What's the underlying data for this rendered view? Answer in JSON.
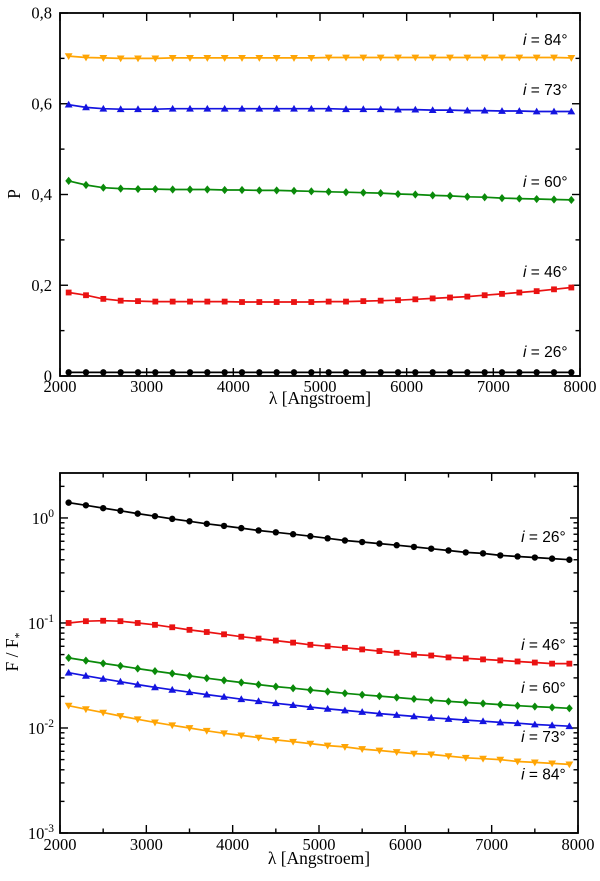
{
  "figure_title": "",
  "chart_data": [
    {
      "id": "polarization-vs-wavelength",
      "type": "line",
      "title": "",
      "xlabel": "λ [Angstroem]",
      "ylabel": "P",
      "yscale": "linear",
      "xlim": [
        2000,
        8000
      ],
      "ylim": [
        0,
        0.8
      ],
      "x_start": 2100,
      "x_step": 200,
      "x_major_ticks": [
        2000,
        3000,
        4000,
        5000,
        6000,
        7000,
        8000
      ],
      "x_tick_labels": [
        "2000",
        "3000",
        "4000",
        "5000",
        "6000",
        "7000",
        "8000"
      ],
      "x_minor_ticks": [
        2500,
        3500,
        4500,
        5500,
        6500,
        7500
      ],
      "y_major_ticks": [
        0,
        0.2,
        0.4,
        0.6,
        0.8
      ],
      "y_tick_labels": [
        "0",
        "0,2",
        "0,4",
        "0,6",
        "0,8"
      ],
      "y_minor_ticks": [
        0.1,
        0.3,
        0.5,
        0.7
      ],
      "grid": false,
      "legend_position": "inline-right-labels",
      "series": [
        {
          "name": "i = 26°",
          "label_var": "i",
          "label_rest": " = 26°",
          "color": "#000000",
          "marker": "circle",
          "label_at": {
            "x": 7600,
            "y": 0.053
          },
          "values": [
            0.008,
            0.008,
            0.008,
            0.008,
            0.008,
            0.008,
            0.008,
            0.008,
            0.008,
            0.008,
            0.008,
            0.008,
            0.008,
            0.008,
            0.008,
            0.008,
            0.008,
            0.008,
            0.008,
            0.008,
            0.008,
            0.008,
            0.008,
            0.008,
            0.008,
            0.008,
            0.008,
            0.008,
            0.008,
            0.008
          ]
        },
        {
          "name": "i = 46°",
          "label_var": "i",
          "label_rest": " = 46°",
          "color": "#ea1212",
          "marker": "square",
          "label_at": {
            "x": 7600,
            "y": 0.229
          },
          "values": [
            0.184,
            0.178,
            0.17,
            0.166,
            0.165,
            0.164,
            0.164,
            0.164,
            0.164,
            0.164,
            0.163,
            0.163,
            0.163,
            0.163,
            0.163,
            0.164,
            0.164,
            0.165,
            0.166,
            0.167,
            0.169,
            0.171,
            0.173,
            0.175,
            0.178,
            0.181,
            0.184,
            0.187,
            0.191,
            0.195
          ]
        },
        {
          "name": "i = 60°",
          "label_var": "i",
          "label_rest": " = 60°",
          "color": "#0a8a0a",
          "marker": "diamond",
          "label_at": {
            "x": 7600,
            "y": 0.428
          },
          "values": [
            0.43,
            0.421,
            0.415,
            0.413,
            0.412,
            0.412,
            0.411,
            0.411,
            0.411,
            0.41,
            0.41,
            0.409,
            0.409,
            0.408,
            0.407,
            0.406,
            0.405,
            0.404,
            0.403,
            0.401,
            0.4,
            0.398,
            0.397,
            0.395,
            0.394,
            0.392,
            0.391,
            0.39,
            0.389,
            0.388
          ]
        },
        {
          "name": "i = 73°",
          "label_var": "i",
          "label_rest": " = 73°",
          "color": "#1414e0",
          "marker": "triangle-up",
          "label_at": {
            "x": 7600,
            "y": 0.63
          },
          "values": [
            0.598,
            0.592,
            0.589,
            0.588,
            0.588,
            0.588,
            0.589,
            0.589,
            0.589,
            0.589,
            0.589,
            0.589,
            0.589,
            0.589,
            0.589,
            0.589,
            0.588,
            0.588,
            0.588,
            0.587,
            0.587,
            0.586,
            0.586,
            0.585,
            0.585,
            0.584,
            0.584,
            0.583,
            0.583,
            0.583
          ]
        },
        {
          "name": "i = 84°",
          "label_var": "i",
          "label_rest": " = 84°",
          "color": "#ffa505",
          "marker": "triangle-down",
          "label_at": {
            "x": 7600,
            "y": 0.74
          },
          "values": [
            0.705,
            0.702,
            0.701,
            0.7,
            0.7,
            0.7,
            0.701,
            0.701,
            0.701,
            0.701,
            0.701,
            0.701,
            0.701,
            0.701,
            0.701,
            0.702,
            0.702,
            0.702,
            0.702,
            0.702,
            0.702,
            0.702,
            0.702,
            0.702,
            0.702,
            0.702,
            0.702,
            0.702,
            0.702,
            0.701
          ]
        }
      ]
    },
    {
      "id": "relative-flux-vs-wavelength",
      "type": "line",
      "title": "",
      "xlabel": "λ [Angstroem]",
      "ylabel": "F / F",
      "ylabel_sub": "*",
      "yscale": "log",
      "xlim": [
        2000,
        8000
      ],
      "ylim": [
        0.001,
        2.68
      ],
      "x_start": 2100,
      "x_step": 200,
      "x_major_ticks": [
        2000,
        3000,
        4000,
        5000,
        6000,
        7000,
        8000
      ],
      "x_tick_labels": [
        "2000",
        "3000",
        "4000",
        "5000",
        "6000",
        "7000",
        "8000"
      ],
      "x_minor_ticks": [
        2500,
        3500,
        4500,
        5500,
        6500,
        7500
      ],
      "y_major_ticks": [
        1,
        0.1,
        0.01,
        0.001
      ],
      "y_tick_labels": [
        {
          "base": "10",
          "exp": "0"
        },
        {
          "base": "10",
          "exp": "-1"
        },
        {
          "base": "10",
          "exp": "-2"
        },
        {
          "base": "10",
          "exp": "-3"
        }
      ],
      "grid": false,
      "legend_position": "inline-right-labels",
      "series": [
        {
          "name": "i = 26°",
          "label_var": "i",
          "label_rest": " = 26°",
          "color": "#000000",
          "marker": "circle",
          "label_at": {
            "x": 7600,
            "y": 0.66
          },
          "values": [
            1.4,
            1.32,
            1.24,
            1.17,
            1.1,
            1.04,
            0.98,
            0.93,
            0.88,
            0.84,
            0.8,
            0.76,
            0.73,
            0.7,
            0.67,
            0.64,
            0.61,
            0.59,
            0.57,
            0.55,
            0.53,
            0.51,
            0.49,
            0.47,
            0.46,
            0.44,
            0.43,
            0.42,
            0.41,
            0.4
          ]
        },
        {
          "name": "i = 46°",
          "label_var": "i",
          "label_rest": " = 46°",
          "color": "#ea1212",
          "marker": "square",
          "label_at": {
            "x": 7600,
            "y": 0.062
          },
          "values": [
            0.1,
            0.104,
            0.105,
            0.104,
            0.1,
            0.096,
            0.091,
            0.086,
            0.082,
            0.078,
            0.074,
            0.071,
            0.068,
            0.065,
            0.062,
            0.06,
            0.058,
            0.056,
            0.054,
            0.052,
            0.05,
            0.049,
            0.047,
            0.046,
            0.045,
            0.044,
            0.043,
            0.042,
            0.041,
            0.041
          ]
        },
        {
          "name": "i = 60°",
          "label_var": "i",
          "label_rest": " = 60°",
          "color": "#0a8a0a",
          "marker": "diamond",
          "label_at": {
            "x": 7600,
            "y": 0.024
          },
          "values": [
            0.0465,
            0.0438,
            0.0412,
            0.039,
            0.0368,
            0.0348,
            0.033,
            0.0313,
            0.0298,
            0.0284,
            0.0271,
            0.0259,
            0.0248,
            0.0239,
            0.023,
            0.0222,
            0.0214,
            0.0207,
            0.0201,
            0.0195,
            0.0189,
            0.0184,
            0.0179,
            0.0175,
            0.0171,
            0.0167,
            0.0163,
            0.016,
            0.0157,
            0.0154
          ]
        },
        {
          "name": "i = 73°",
          "label_var": "i",
          "label_rest": " = 73°",
          "color": "#1414e0",
          "marker": "triangle-up",
          "label_at": {
            "x": 7600,
            "y": 0.0082
          },
          "values": [
            0.0336,
            0.0314,
            0.0294,
            0.0276,
            0.0259,
            0.0244,
            0.0231,
            0.0219,
            0.0208,
            0.0198,
            0.0188,
            0.018,
            0.0172,
            0.0165,
            0.0158,
            0.0152,
            0.0147,
            0.0142,
            0.0137,
            0.0133,
            0.0129,
            0.0125,
            0.0122,
            0.0119,
            0.0116,
            0.0113,
            0.0111,
            0.0108,
            0.0106,
            0.0104
          ]
        },
        {
          "name": "i = 84°",
          "label_var": "i",
          "label_rest": " = 84°",
          "color": "#ffa505",
          "marker": "triangle-down",
          "label_at": {
            "x": 7600,
            "y": 0.0036
          },
          "values": [
            0.0163,
            0.0151,
            0.014,
            0.013,
            0.0121,
            0.0113,
            0.0106,
            0.01,
            0.0094,
            0.0089,
            0.0085,
            0.0081,
            0.0077,
            0.0074,
            0.0071,
            0.0068,
            0.0066,
            0.0063,
            0.0061,
            0.0059,
            0.0057,
            0.0056,
            0.0054,
            0.0052,
            0.0051,
            0.005,
            0.0048,
            0.0047,
            0.0046,
            0.0045
          ]
        }
      ]
    }
  ]
}
